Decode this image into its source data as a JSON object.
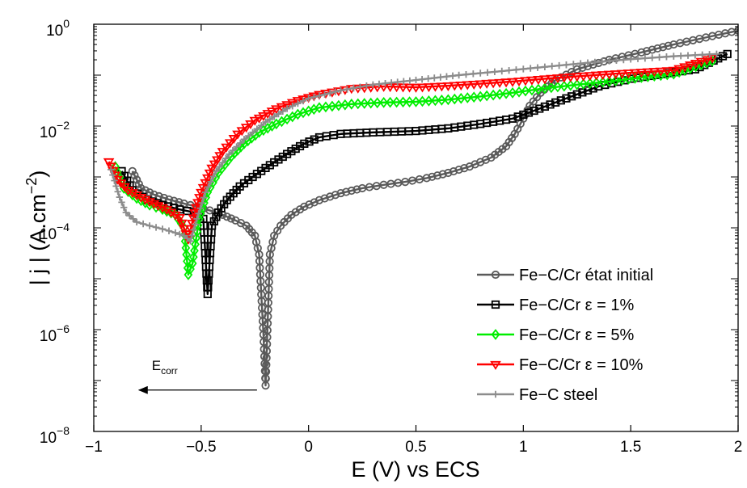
{
  "chart_data": {
    "type": "line",
    "title": "",
    "xlabel": "E (V) vs ECS",
    "ylabel": "| j | (A.cm",
    "ylabel_exp": "−2",
    "ylabel_close": ")",
    "xlim": [
      -1,
      2
    ],
    "ylim": [
      1e-08,
      1
    ],
    "yscale": "log",
    "grid": false,
    "legend_position": "bottom-right",
    "x_ticks": [
      {
        "value": -1,
        "label": "−1"
      },
      {
        "value": -0.5,
        "label": "−0.5"
      },
      {
        "value": 0,
        "label": "0"
      },
      {
        "value": 0.5,
        "label": "0.5"
      },
      {
        "value": 1,
        "label": "1"
      },
      {
        "value": 1.5,
        "label": "1.5"
      },
      {
        "value": 2,
        "label": "2"
      }
    ],
    "y_ticks": [
      {
        "value": 1e-08,
        "base": "10",
        "exp": "−8"
      },
      {
        "value": 1e-06,
        "base": "10",
        "exp": "−6"
      },
      {
        "value": 0.0001,
        "base": "10",
        "exp": "−4"
      },
      {
        "value": 0.01,
        "base": "10",
        "exp": "−2"
      },
      {
        "value": 1,
        "base": "10",
        "exp": "0"
      }
    ],
    "annotation": {
      "base": "E",
      "sub": "corr",
      "arrow_from": {
        "x": -0.24,
        "y": 6.5e-08
      },
      "arrow_to": {
        "x": -0.79,
        "y": 6.5e-08
      },
      "text_at": {
        "x": -0.73,
        "y": 1.6e-07
      }
    },
    "series": [
      {
        "name": "Fe−C/Cr état initial",
        "color": "#5a5a5a",
        "marker": "circle",
        "points": [
          [
            -0.82,
            0.0013
          ],
          [
            -0.78,
            0.0006
          ],
          [
            -0.72,
            0.00045
          ],
          [
            -0.65,
            0.00036
          ],
          [
            -0.58,
            0.0003
          ],
          [
            -0.52,
            0.00026
          ],
          [
            -0.46,
            0.00022
          ],
          [
            -0.4,
            0.00018
          ],
          [
            -0.34,
            0.00014
          ],
          [
            -0.29,
            0.00011
          ],
          [
            -0.25,
            7e-05
          ],
          [
            -0.23,
            3e-05
          ],
          [
            -0.21,
            8e-07
          ],
          [
            -0.2,
            8e-08
          ],
          [
            -0.18,
            3e-05
          ],
          [
            -0.16,
            7e-05
          ],
          [
            -0.13,
            0.00011
          ],
          [
            -0.08,
            0.00018
          ],
          [
            -0.02,
            0.00026
          ],
          [
            0.05,
            0.00035
          ],
          [
            0.15,
            0.00048
          ],
          [
            0.25,
            0.0006
          ],
          [
            0.35,
            0.0007
          ],
          [
            0.45,
            0.0008
          ],
          [
            0.55,
            0.00095
          ],
          [
            0.65,
            0.0012
          ],
          [
            0.75,
            0.0016
          ],
          [
            0.85,
            0.0024
          ],
          [
            0.92,
            0.004
          ],
          [
            0.96,
            0.007
          ],
          [
            1.0,
            0.014
          ],
          [
            1.03,
            0.025
          ],
          [
            1.08,
            0.045
          ],
          [
            1.15,
            0.08
          ],
          [
            1.25,
            0.13
          ],
          [
            1.4,
            0.2
          ],
          [
            1.55,
            0.28
          ],
          [
            1.7,
            0.4
          ],
          [
            1.85,
            0.55
          ],
          [
            2.0,
            0.75
          ]
        ]
      },
      {
        "name": "Fe−C/Cr ε = 1%",
        "color": "#000000",
        "marker": "square",
        "points": [
          [
            -0.87,
            0.0013
          ],
          [
            -0.82,
            0.00055
          ],
          [
            -0.75,
            0.00035
          ],
          [
            -0.68,
            0.00028
          ],
          [
            -0.6,
            0.00023
          ],
          [
            -0.53,
            0.0002
          ],
          [
            -0.49,
            0.00015
          ],
          [
            -0.47,
            5e-06
          ],
          [
            -0.45,
            0.00011
          ],
          [
            -0.42,
            0.0002
          ],
          [
            -0.38,
            0.00035
          ],
          [
            -0.32,
            0.00065
          ],
          [
            -0.26,
            0.001
          ],
          [
            -0.2,
            0.0015
          ],
          [
            -0.14,
            0.0022
          ],
          [
            -0.08,
            0.0032
          ],
          [
            -0.02,
            0.0045
          ],
          [
            0.05,
            0.006
          ],
          [
            0.15,
            0.007
          ],
          [
            0.3,
            0.0075
          ],
          [
            0.5,
            0.008
          ],
          [
            0.65,
            0.009
          ],
          [
            0.8,
            0.011
          ],
          [
            0.95,
            0.014
          ],
          [
            1.05,
            0.02
          ],
          [
            1.2,
            0.035
          ],
          [
            1.35,
            0.06
          ],
          [
            1.5,
            0.085
          ],
          [
            1.65,
            0.105
          ],
          [
            1.8,
            0.13
          ],
          [
            1.95,
            0.26
          ]
        ]
      },
      {
        "name": "Fe−C/Cr ε = 5%",
        "color": "#00ee00",
        "marker": "diamond",
        "points": [
          [
            -0.9,
            0.0016
          ],
          [
            -0.86,
            0.0006
          ],
          [
            -0.8,
            0.00038
          ],
          [
            -0.74,
            0.00028
          ],
          [
            -0.68,
            0.00023
          ],
          [
            -0.62,
            0.00018
          ],
          [
            -0.58,
            0.0001
          ],
          [
            -0.56,
            1.2e-05
          ],
          [
            -0.54,
            2e-05
          ],
          [
            -0.51,
            0.00015
          ],
          [
            -0.47,
            0.0005
          ],
          [
            -0.42,
            0.0012
          ],
          [
            -0.36,
            0.0025
          ],
          [
            -0.3,
            0.0045
          ],
          [
            -0.23,
            0.0075
          ],
          [
            -0.15,
            0.011
          ],
          [
            -0.05,
            0.017
          ],
          [
            0.05,
            0.023
          ],
          [
            0.2,
            0.027
          ],
          [
            0.35,
            0.029
          ],
          [
            0.5,
            0.03
          ],
          [
            0.65,
            0.033
          ],
          [
            0.8,
            0.038
          ],
          [
            0.95,
            0.045
          ],
          [
            1.1,
            0.055
          ],
          [
            1.25,
            0.065
          ],
          [
            1.4,
            0.075
          ],
          [
            1.55,
            0.09
          ],
          [
            1.7,
            0.105
          ],
          [
            1.88,
            0.19
          ]
        ]
      },
      {
        "name": "Fe−C/Cr ε = 10%",
        "color": "#ff0000",
        "marker": "triangle-down",
        "points": [
          [
            -0.93,
            0.002
          ],
          [
            -0.89,
            0.0009
          ],
          [
            -0.84,
            0.00055
          ],
          [
            -0.78,
            0.0004
          ],
          [
            -0.72,
            0.0003
          ],
          [
            -0.66,
            0.00023
          ],
          [
            -0.6,
            0.00016
          ],
          [
            -0.56,
            6e-05
          ],
          [
            -0.53,
            0.0002
          ],
          [
            -0.5,
            0.0005
          ],
          [
            -0.45,
            0.0015
          ],
          [
            -0.4,
            0.0032
          ],
          [
            -0.33,
            0.007
          ],
          [
            -0.25,
            0.013
          ],
          [
            -0.15,
            0.022
          ],
          [
            -0.05,
            0.032
          ],
          [
            0.05,
            0.042
          ],
          [
            0.2,
            0.055
          ],
          [
            0.35,
            0.06
          ],
          [
            0.5,
            0.058
          ],
          [
            0.65,
            0.062
          ],
          [
            0.8,
            0.068
          ],
          [
            0.95,
            0.075
          ],
          [
            1.1,
            0.085
          ],
          [
            1.25,
            0.095
          ],
          [
            1.4,
            0.105
          ],
          [
            1.55,
            0.115
          ],
          [
            1.7,
            0.125
          ],
          [
            1.88,
            0.22
          ]
        ]
      },
      {
        "name": "Fe−C steel",
        "color": "#8c8c8c",
        "marker": "plus",
        "points": [
          [
            -0.92,
            0.0014
          ],
          [
            -0.88,
            0.0004
          ],
          [
            -0.85,
            0.0002
          ],
          [
            -0.8,
            0.00013
          ],
          [
            -0.74,
            0.00011
          ],
          [
            -0.68,
            9.5e-05
          ],
          [
            -0.62,
            8e-05
          ],
          [
            -0.58,
            7e-05
          ],
          [
            -0.55,
            5.5e-05
          ],
          [
            -0.52,
            0.00015
          ],
          [
            -0.48,
            0.0005
          ],
          [
            -0.43,
            0.0013
          ],
          [
            -0.37,
            0.0028
          ],
          [
            -0.3,
            0.0055
          ],
          [
            -0.2,
            0.012
          ],
          [
            -0.1,
            0.022
          ],
          [
            0.0,
            0.035
          ],
          [
            0.15,
            0.05
          ],
          [
            0.3,
            0.065
          ],
          [
            0.5,
            0.08
          ],
          [
            0.7,
            0.1
          ],
          [
            0.9,
            0.12
          ],
          [
            1.1,
            0.145
          ],
          [
            1.3,
            0.175
          ],
          [
            1.5,
            0.205
          ],
          [
            1.7,
            0.235
          ],
          [
            1.9,
            0.26
          ]
        ]
      }
    ]
  }
}
